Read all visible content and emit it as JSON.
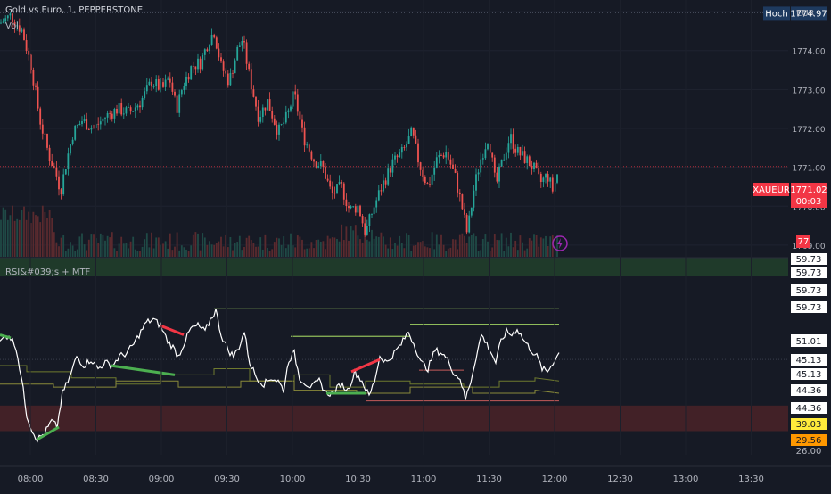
{
  "header": {
    "title": "Gold vs Euro, 1, PEPPERSTONE",
    "indicator": "Vol",
    "currency": "EUR"
  },
  "chart_data": [
    {
      "type": "candlestick",
      "title": "Gold vs Euro, 1, PEPPERSTONE",
      "y_ticks": [
        "1775.00",
        "1774.00",
        "1773.00",
        "1772.00",
        "1771.00",
        "1770.00",
        "1769.00"
      ],
      "ylim": [
        1768.7,
        1775.3
      ],
      "x_ticks": [
        "08:00",
        "08:30",
        "09:00",
        "09:30",
        "10:00",
        "10:30",
        "11:00",
        "11:30",
        "12:00",
        "12:30",
        "13:00",
        "13:30"
      ],
      "high_label": "Hoch",
      "high_value": 1774.97,
      "last_symbol": "XAUEUR",
      "last_price": "1771.02",
      "countdown": "00:03",
      "volume_badge": "77",
      "close_path": [
        [
          0,
          1774.7
        ],
        [
          12,
          1774.9
        ],
        [
          25,
          1774.5
        ],
        [
          35,
          1773.6
        ],
        [
          45,
          1772.2
        ],
        [
          55,
          1771.3
        ],
        [
          62,
          1770.9
        ],
        [
          68,
          1770.4
        ],
        [
          75,
          1771.2
        ],
        [
          82,
          1771.9
        ],
        [
          92,
          1772.2
        ],
        [
          105,
          1772.0
        ],
        [
          118,
          1772.3
        ],
        [
          132,
          1772.5
        ],
        [
          145,
          1772.4
        ],
        [
          158,
          1772.7
        ],
        [
          170,
          1773.2
        ],
        [
          182,
          1773.0
        ],
        [
          190,
          1773.3
        ],
        [
          198,
          1772.5
        ],
        [
          205,
          1773.1
        ],
        [
          215,
          1773.6
        ],
        [
          225,
          1773.7
        ],
        [
          233,
          1774.2
        ],
        [
          240,
          1774.5
        ],
        [
          248,
          1773.6
        ],
        [
          257,
          1773.2
        ],
        [
          266,
          1774.0
        ],
        [
          272,
          1774.3
        ],
        [
          280,
          1773.3
        ],
        [
          290,
          1772.3
        ],
        [
          300,
          1772.7
        ],
        [
          312,
          1771.9
        ],
        [
          322,
          1772.3
        ],
        [
          330,
          1772.9
        ],
        [
          340,
          1771.8
        ],
        [
          352,
          1771.2
        ],
        [
          362,
          1771.0
        ],
        [
          372,
          1770.3
        ],
        [
          383,
          1770.5
        ],
        [
          392,
          1769.9
        ],
        [
          402,
          1770.0
        ],
        [
          410,
          1769.3
        ],
        [
          418,
          1769.9
        ],
        [
          428,
          1770.5
        ],
        [
          440,
          1771.1
        ],
        [
          452,
          1771.4
        ],
        [
          462,
          1771.9
        ],
        [
          470,
          1771.1
        ],
        [
          480,
          1770.5
        ],
        [
          490,
          1771.2
        ],
        [
          500,
          1771.4
        ],
        [
          510,
          1770.8
        ],
        [
          518,
          1770.0
        ],
        [
          524,
          1769.3
        ],
        [
          532,
          1770.5
        ],
        [
          540,
          1771.3
        ],
        [
          548,
          1771.8
        ],
        [
          556,
          1770.5
        ],
        [
          564,
          1771.2
        ],
        [
          572,
          1771.8
        ],
        [
          580,
          1771.4
        ],
        [
          590,
          1771.2
        ],
        [
          598,
          1771.0
        ],
        [
          606,
          1770.6
        ],
        [
          614,
          1770.8
        ],
        [
          620,
          1770.4
        ],
        [
          627,
          1771.0
        ]
      ]
    },
    {
      "type": "line",
      "title": "RSI&#039;s + MTF",
      "ylim": [
        20,
        78
      ],
      "y_ticks": [
        "59.73",
        "59.73",
        "59.73",
        "59.73",
        "51.01",
        "45.13",
        "45.13",
        "44.36",
        "44.36",
        "39.03",
        "29.56",
        "26.00"
      ],
      "rsi": [
        [
          0,
          57
        ],
        [
          10,
          59
        ],
        [
          18,
          55
        ],
        [
          24,
          45
        ],
        [
          30,
          33
        ],
        [
          36,
          28
        ],
        [
          42,
          25
        ],
        [
          50,
          27
        ],
        [
          58,
          31
        ],
        [
          64,
          29
        ],
        [
          70,
          40
        ],
        [
          78,
          45
        ],
        [
          86,
          52
        ],
        [
          94,
          49
        ],
        [
          102,
          51
        ],
        [
          110,
          48
        ],
        [
          118,
          50
        ],
        [
          126,
          49
        ],
        [
          134,
          52
        ],
        [
          142,
          53
        ],
        [
          150,
          56
        ],
        [
          158,
          60
        ],
        [
          164,
          63
        ],
        [
          172,
          64
        ],
        [
          180,
          62
        ],
        [
          188,
          57
        ],
        [
          194,
          55
        ],
        [
          200,
          52
        ],
        [
          206,
          56
        ],
        [
          214,
          61
        ],
        [
          222,
          62
        ],
        [
          230,
          60
        ],
        [
          236,
          64
        ],
        [
          242,
          67
        ],
        [
          248,
          59
        ],
        [
          256,
          54
        ],
        [
          262,
          52
        ],
        [
          268,
          55
        ],
        [
          274,
          60
        ],
        [
          280,
          50
        ],
        [
          288,
          45
        ],
        [
          296,
          43
        ],
        [
          304,
          45
        ],
        [
          312,
          44
        ],
        [
          318,
          41
        ],
        [
          324,
          51
        ],
        [
          330,
          53
        ],
        [
          336,
          45
        ],
        [
          344,
          43
        ],
        [
          350,
          42
        ],
        [
          358,
          44
        ],
        [
          366,
          40
        ],
        [
          374,
          40
        ],
        [
          382,
          43
        ],
        [
          390,
          41
        ],
        [
          398,
          47
        ],
        [
          406,
          44
        ],
        [
          414,
          39
        ],
        [
          420,
          44
        ],
        [
          426,
          52
        ],
        [
          434,
          50
        ],
        [
          442,
          53
        ],
        [
          450,
          56
        ],
        [
          458,
          60
        ],
        [
          466,
          55
        ],
        [
          472,
          50
        ],
        [
          480,
          48
        ],
        [
          488,
          54
        ],
        [
          496,
          53
        ],
        [
          504,
          50
        ],
        [
          510,
          46
        ],
        [
          516,
          45
        ],
        [
          522,
          38
        ],
        [
          528,
          44
        ],
        [
          534,
          52
        ],
        [
          540,
          59
        ],
        [
          548,
          55
        ],
        [
          556,
          50
        ],
        [
          562,
          57
        ],
        [
          568,
          60
        ],
        [
          574,
          59
        ],
        [
          580,
          61
        ],
        [
          588,
          57
        ],
        [
          596,
          54
        ],
        [
          602,
          52
        ],
        [
          608,
          48
        ],
        [
          614,
          47
        ],
        [
          620,
          50
        ],
        [
          627,
          53
        ]
      ],
      "mtf_steps": [
        {
          "color": "#6f7a2e",
          "points": [
            [
              0,
              49
            ],
            [
              30,
              49
            ],
            [
              30,
              47
            ],
            [
              80,
              47
            ],
            [
              80,
              45
            ],
            [
              130,
              45
            ],
            [
              130,
              43
            ],
            [
              180,
              43
            ],
            [
              180,
              46
            ],
            [
              240,
              46
            ],
            [
              240,
              48
            ],
            [
              280,
              48
            ],
            [
              280,
              44
            ],
            [
              330,
              44
            ],
            [
              330,
              46
            ],
            [
              370,
              46
            ],
            [
              370,
              42
            ],
            [
              410,
              42
            ],
            [
              410,
              44
            ],
            [
              460,
              44
            ],
            [
              460,
              43
            ],
            [
              520,
              43
            ],
            [
              520,
              42
            ],
            [
              560,
              42
            ],
            [
              560,
              44
            ],
            [
              600,
              44
            ],
            [
              600,
              45
            ],
            [
              627,
              44
            ]
          ]
        },
        {
          "color": "#8a8a3a",
          "points": [
            [
              0,
              43
            ],
            [
              60,
              43
            ],
            [
              60,
              42
            ],
            [
              130,
              42
            ],
            [
              130,
              44
            ],
            [
              200,
              44
            ],
            [
              200,
              42
            ],
            [
              270,
              42
            ],
            [
              270,
              44
            ],
            [
              330,
              44
            ],
            [
              330,
              41
            ],
            [
              400,
              41
            ],
            [
              400,
              40
            ],
            [
              460,
              40
            ],
            [
              460,
              42
            ],
            [
              530,
              42
            ],
            [
              530,
              40
            ],
            [
              600,
              40
            ],
            [
              600,
              41
            ],
            [
              627,
              40
            ]
          ]
        }
      ],
      "level_lines": [
        {
          "color": "#8fbc5a",
          "value": 67.5,
          "x": [
            240,
            627
          ]
        },
        {
          "color": "#8fbc5a",
          "value": 62.5,
          "x": [
            460,
            627
          ]
        },
        {
          "color": "#8fbc5a",
          "value": 58.5,
          "x": [
            326,
            460
          ]
        },
        {
          "color": "#8fbc5a",
          "value": 58.5,
          "x": [
            326,
            460
          ]
        },
        {
          "color": "#c45a5a",
          "value": 47.5,
          "x": [
            470,
            520
          ]
        },
        {
          "color": "#c45a5a",
          "value": 37.5,
          "x": [
            410,
            627
          ]
        }
      ],
      "divergence_lines": [
        {
          "color": "#4caf50",
          "from": [
            0,
            59
          ],
          "to": [
            12,
            58
          ]
        },
        {
          "color": "#4caf50",
          "from": [
            42,
            25
          ],
          "to": [
            66,
            29
          ]
        },
        {
          "color": "#4caf50",
          "from": [
            124,
            49
          ],
          "to": [
            196,
            46
          ]
        },
        {
          "color": "#f23645",
          "from": [
            180,
            62
          ],
          "to": [
            206,
            59
          ]
        },
        {
          "color": "#f23645",
          "from": [
            394,
            47
          ],
          "to": [
            426,
            51
          ]
        },
        {
          "color": "#4caf50",
          "from": [
            366,
            40
          ],
          "to": [
            410,
            40
          ]
        }
      ],
      "zones": {
        "oversold": [
          30,
          36
        ],
        "overbought_band": true
      },
      "last_value": "51.01"
    }
  ]
}
